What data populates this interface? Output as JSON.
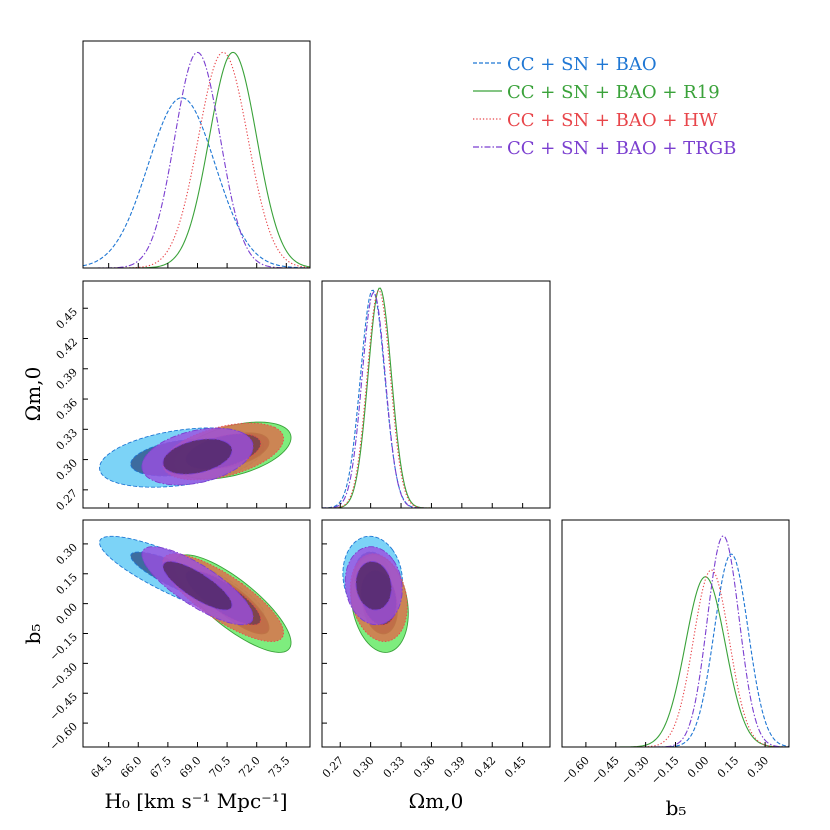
{
  "chart_data": {
    "type": "corner",
    "parameters": [
      "H0",
      "Om0",
      "b5"
    ],
    "axis_labels": {
      "H0": "H₀ [km s⁻¹ Mpc⁻¹]",
      "Om0": "Ωm,0",
      "b5": "b₅"
    },
    "ranges": {
      "H0": [
        63.2,
        74.7
      ],
      "Om0": [
        0.252,
        0.477
      ],
      "b5": [
        -0.72,
        0.42
      ]
    },
    "ticks": {
      "H0": [
        "64.5",
        "66.0",
        "67.5",
        "69.0",
        "70.5",
        "72.0",
        "73.5"
      ],
      "Om0": [
        "0.27",
        "0.30",
        "0.33",
        "0.36",
        "0.39",
        "0.42",
        "0.45"
      ],
      "b5_y": [
        "0.30",
        "0.15",
        "0.00",
        "−0.15",
        "−0.30",
        "−0.45",
        "−0.60"
      ],
      "b5_x": [
        "−0.60",
        "−0.45",
        "−0.30",
        "−0.15",
        "0.00",
        "0.15",
        "0.30"
      ]
    },
    "series": [
      {
        "name": "CC + SN + BAO",
        "color": "#1f77d4",
        "fill": "#5bc8f5",
        "dark": "#2c4f86",
        "linestyle": "dashed",
        "H0": {
          "mean": 68.2,
          "sd": 1.7,
          "peak": 0.75
        },
        "Om0": {
          "mean": 0.302,
          "sd": 0.012,
          "peak": 0.96
        },
        "b5": {
          "mean": 0.13,
          "sd": 0.085,
          "peak": 0.85
        },
        "corr_H0_Om0": 0.35,
        "corr_H0_b5": -0.85,
        "corr_Om0_b5": -0.1
      },
      {
        "name": "CC + SN + BAO + R19",
        "color": "#3aa23a",
        "fill": "#5ee85e",
        "dark": "#2e5e2e",
        "linestyle": "solid",
        "H0": {
          "mean": 70.8,
          "sd": 1.2,
          "peak": 0.95
        },
        "Om0": {
          "mean": 0.309,
          "sd": 0.0115,
          "peak": 0.97
        },
        "b5": {
          "mean": 0.0,
          "sd": 0.1,
          "peak": 0.75
        },
        "corr_H0_Om0": 0.45,
        "corr_H0_b5": -0.8,
        "corr_Om0_b5": -0.2
      },
      {
        "name": "CC + SN + BAO + HW",
        "color": "#e8454a",
        "fill": "#e06a4a",
        "dark": "#6b3a4e",
        "linestyle": "dotted",
        "H0": {
          "mean": 70.3,
          "sd": 1.25,
          "peak": 0.95
        },
        "Om0": {
          "mean": 0.308,
          "sd": 0.0115,
          "peak": 0.96
        },
        "b5": {
          "mean": 0.03,
          "sd": 0.09,
          "peak": 0.78
        },
        "corr_H0_Om0": 0.45,
        "corr_H0_b5": -0.8,
        "corr_Om0_b5": -0.2
      },
      {
        "name": "CC + SN + BAO + TRGB",
        "color": "#7b3fd0",
        "fill": "#9b4fe0",
        "dark": "#4a2560",
        "linestyle": "dashdot",
        "H0": {
          "mean": 69.0,
          "sd": 1.15,
          "peak": 0.95
        },
        "Om0": {
          "mean": 0.303,
          "sd": 0.0115,
          "peak": 0.95
        },
        "b5": {
          "mean": 0.09,
          "sd": 0.08,
          "peak": 0.93
        },
        "corr_H0_Om0": 0.35,
        "corr_H0_b5": -0.8,
        "corr_Om0_b5": -0.1
      }
    ],
    "legend_position": "top-right"
  }
}
